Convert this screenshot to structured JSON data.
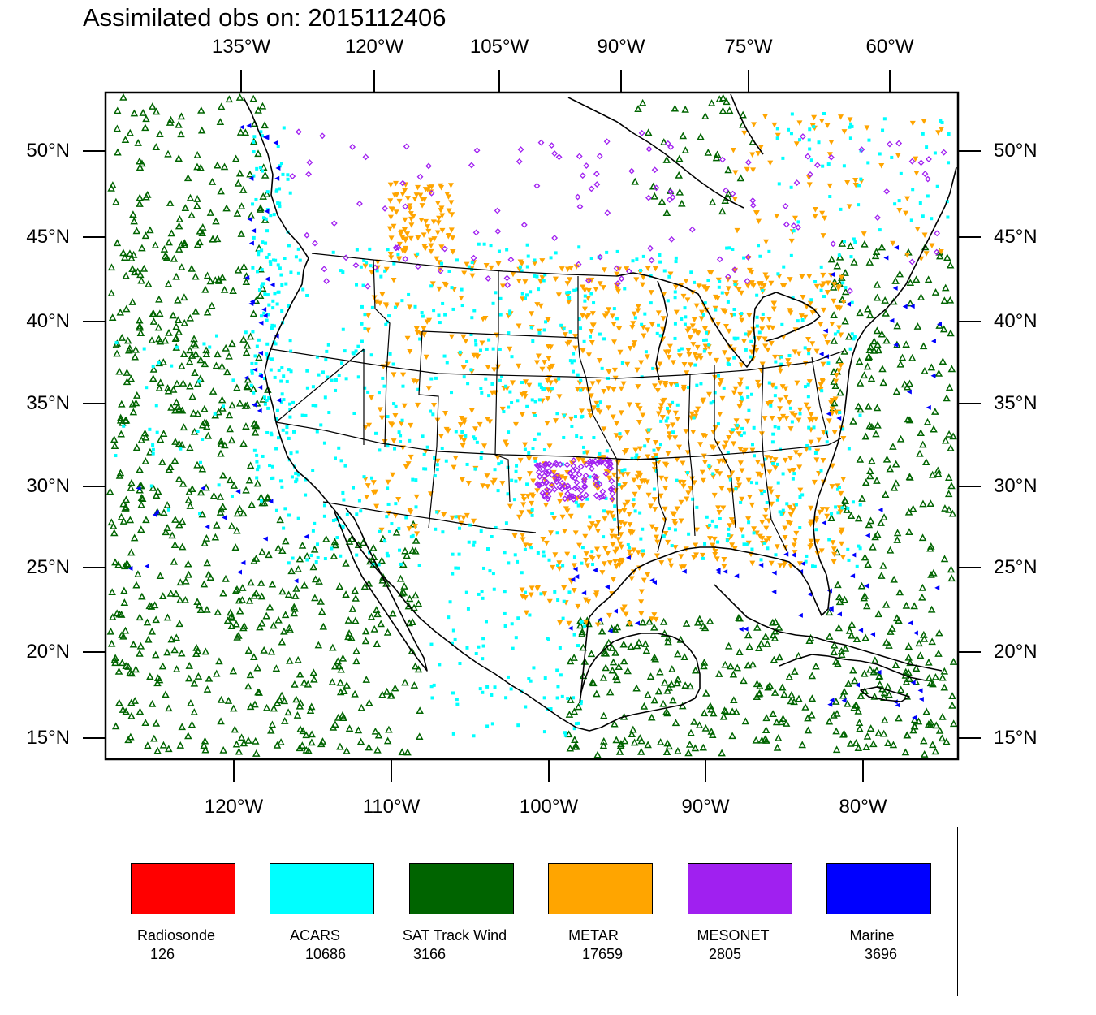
{
  "title": "Assimilated obs on: 2015112406",
  "top_axis": [
    "135°W",
    "120°W",
    "105°W",
    "90°W",
    "75°W",
    "60°W"
  ],
  "bottom_axis": [
    "120°W",
    "110°W",
    "100°W",
    "90°W",
    "80°W"
  ],
  "left_axis": [
    "50°N",
    "45°N",
    "40°N",
    "35°N",
    "30°N",
    "25°N",
    "20°N",
    "15°N"
  ],
  "right_axis": [
    "50°N",
    "45°N",
    "40°N",
    "35°N",
    "30°N",
    "25°N",
    "20°N",
    "15°N"
  ],
  "legend": [
    {
      "name": "Radiosonde",
      "count": "126",
      "color": "#ff0000"
    },
    {
      "name": "ACARS",
      "count": "10686",
      "color": "#00ffff"
    },
    {
      "name": "SAT Track Wind",
      "count": "3166",
      "color": "#006400"
    },
    {
      "name": "METAR",
      "count": "17659",
      "color": "#ffa500"
    },
    {
      "name": "MESONET",
      "count": "2805",
      "color": "#a020f0"
    },
    {
      "name": "Marine",
      "count": "3696",
      "color": "#0000ff"
    }
  ],
  "marker_colors": {
    "acars": "#00ffff",
    "sat_track_wind": "#006400",
    "metar": "#ffa500",
    "mesonet": "#a020f0",
    "marine": "#0000ff"
  }
}
